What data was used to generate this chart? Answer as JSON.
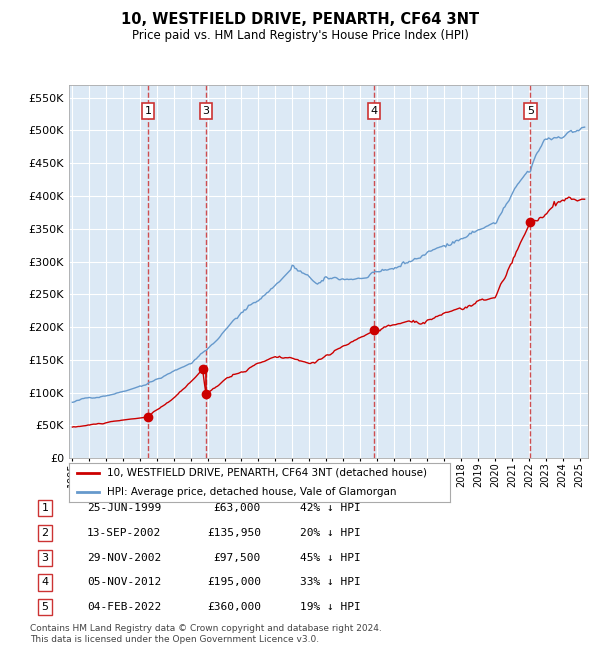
{
  "title": "10, WESTFIELD DRIVE, PENARTH, CF64 3NT",
  "subtitle": "Price paid vs. HM Land Registry's House Price Index (HPI)",
  "ylim": [
    0,
    570000
  ],
  "yticks": [
    0,
    50000,
    100000,
    150000,
    200000,
    250000,
    300000,
    350000,
    400000,
    450000,
    500000,
    550000
  ],
  "ytick_labels": [
    "£0",
    "£50K",
    "£100K",
    "£150K",
    "£200K",
    "£250K",
    "£300K",
    "£350K",
    "£400K",
    "£450K",
    "£500K",
    "£550K"
  ],
  "xlim_start": 1994.8,
  "xlim_end": 2025.5,
  "plot_bg_color": "#dce9f5",
  "grid_color": "#ffffff",
  "sale_points": [
    {
      "label": "1",
      "date_num": 1999.48,
      "price": 63000,
      "show_label": true
    },
    {
      "label": "2",
      "date_num": 2002.7,
      "price": 135950,
      "show_label": false
    },
    {
      "label": "3",
      "date_num": 2002.91,
      "price": 97500,
      "show_label": true
    },
    {
      "label": "4",
      "date_num": 2012.84,
      "price": 195000,
      "show_label": true
    },
    {
      "label": "5",
      "date_num": 2022.09,
      "price": 360000,
      "show_label": true
    }
  ],
  "vline_dates": [
    1999.48,
    2002.91,
    2012.84,
    2022.09
  ],
  "vline_labels": [
    "1",
    "3",
    "4",
    "5"
  ],
  "red_line_color": "#cc0000",
  "blue_line_color": "#6699cc",
  "marker_color": "#cc0000",
  "legend_entries": [
    "10, WESTFIELD DRIVE, PENARTH, CF64 3NT (detached house)",
    "HPI: Average price, detached house, Vale of Glamorgan"
  ],
  "table_rows": [
    {
      "num": "1",
      "date": "25-JUN-1999",
      "price": "£63,000",
      "hpi": "42% ↓ HPI"
    },
    {
      "num": "2",
      "date": "13-SEP-2002",
      "price": "£135,950",
      "hpi": "20% ↓ HPI"
    },
    {
      "num": "3",
      "date": "29-NOV-2002",
      "price": "£97,500",
      "hpi": "45% ↓ HPI"
    },
    {
      "num": "4",
      "date": "05-NOV-2012",
      "price": "£195,000",
      "hpi": "33% ↓ HPI"
    },
    {
      "num": "5",
      "date": "04-FEB-2022",
      "price": "£360,000",
      "hpi": "19% ↓ HPI"
    }
  ],
  "footnote": "Contains HM Land Registry data © Crown copyright and database right 2024.\nThis data is licensed under the Open Government Licence v3.0."
}
